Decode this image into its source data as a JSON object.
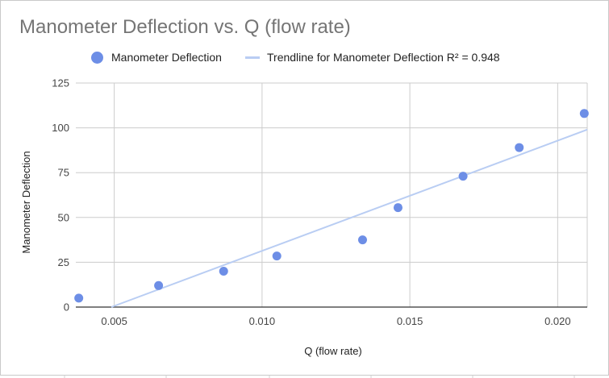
{
  "chart_data": {
    "type": "scatter",
    "title": "Manometer Deflection vs. Q (flow rate)",
    "xlabel": "Q (flow rate)",
    "ylabel": "Manometer Deflection",
    "xlim": [
      0.0037,
      0.021
    ],
    "ylim": [
      0,
      125
    ],
    "x_ticks": [
      0.005,
      0.01,
      0.015,
      0.02
    ],
    "x_tick_labels": [
      "0.005",
      "0.010",
      "0.015",
      "0.020"
    ],
    "y_ticks": [
      0,
      25,
      50,
      75,
      100,
      125
    ],
    "y_tick_labels": [
      "0",
      "25",
      "50",
      "75",
      "100",
      "125"
    ],
    "grid": true,
    "legend_position": "top",
    "series": [
      {
        "name": "Manometer Deflection",
        "color": "#6d8ee6",
        "x": [
          0.0038,
          0.0065,
          0.0087,
          0.0105,
          0.0134,
          0.0146,
          0.0168,
          0.0187,
          0.0209
        ],
        "y": [
          5,
          12,
          20,
          28.5,
          37.5,
          55.5,
          73,
          89,
          108
        ]
      }
    ],
    "trendline": {
      "name": "Trendline for Manometer Deflection R² = 0.948",
      "color": "#b9cdf3",
      "x": [
        0.0049,
        0.021
      ],
      "y": [
        0,
        99
      ]
    }
  }
}
